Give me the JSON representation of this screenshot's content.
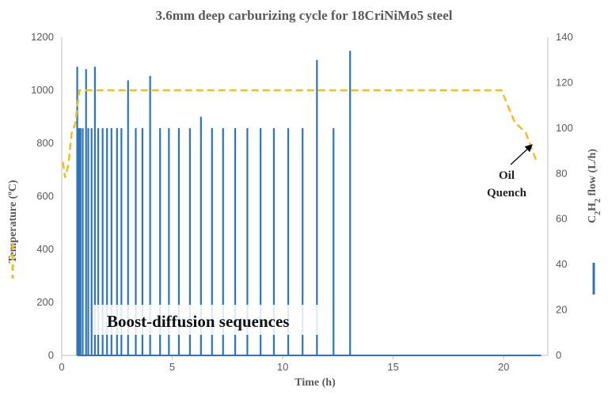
{
  "chart_data": {
    "type": "line",
    "title": "3.6mm deep carburizing cycle for 18CriNiMo5 steel",
    "xlabel": "Time (h)",
    "ylabel_left": "Temperature (ºC)",
    "ylabel_right_main": "C",
    "ylabel_right_sub1": "2",
    "ylabel_right_mid": "H",
    "ylabel_right_sub2": "2",
    "ylabel_right_end": " flow (L/h)",
    "xlim": [
      0,
      22
    ],
    "ylim_left": [
      0,
      1200
    ],
    "ylim_right": [
      0,
      140
    ],
    "x_ticks": [
      "0",
      "5",
      "10",
      "15",
      "20"
    ],
    "x_tick_values": [
      0,
      5,
      10,
      15,
      20
    ],
    "y_left_ticks": [
      "0",
      "200",
      "400",
      "600",
      "800",
      "1000",
      "1200"
    ],
    "y_left_tick_values": [
      0,
      200,
      400,
      600,
      800,
      1000,
      1200
    ],
    "y_right_ticks": [
      "0",
      "20",
      "40",
      "60",
      "80",
      "100",
      "120",
      "140"
    ],
    "y_right_tick_values": [
      0,
      20,
      40,
      60,
      80,
      100,
      120,
      140
    ],
    "colors": {
      "temperature": "#f0c020",
      "flow": "#2e75b6",
      "axis": "#bfbfbf"
    },
    "series": [
      {
        "axis": "left",
        "style": "dashed",
        "points": [
          [
            0.05,
            730
          ],
          [
            0.15,
            670
          ],
          [
            0.3,
            720
          ],
          [
            0.45,
            840
          ],
          [
            0.6,
            870
          ],
          [
            0.8,
            1000
          ],
          [
            19.9,
            1000
          ],
          [
            20.5,
            880
          ],
          [
            21.0,
            840
          ],
          [
            21.5,
            730
          ]
        ]
      },
      {
        "axis": "right",
        "style": "spikes",
        "spikes": [
          [
            0.7,
            127
          ],
          [
            0.75,
            100
          ],
          [
            0.8,
            100
          ],
          [
            0.85,
            100
          ],
          [
            0.95,
            100
          ],
          [
            1.1,
            126
          ],
          [
            1.2,
            100
          ],
          [
            1.35,
            100
          ],
          [
            1.5,
            127
          ],
          [
            1.65,
            100
          ],
          [
            1.85,
            100
          ],
          [
            2.05,
            100
          ],
          [
            2.25,
            100
          ],
          [
            2.5,
            100
          ],
          [
            2.7,
            100
          ],
          [
            3.0,
            121
          ],
          [
            3.35,
            100
          ],
          [
            3.65,
            100
          ],
          [
            4.0,
            123
          ],
          [
            4.45,
            100
          ],
          [
            4.85,
            100
          ],
          [
            5.3,
            100
          ],
          [
            5.8,
            100
          ],
          [
            6.3,
            105
          ],
          [
            6.8,
            100
          ],
          [
            7.3,
            100
          ],
          [
            7.85,
            100
          ],
          [
            8.4,
            100
          ],
          [
            9.0,
            100
          ],
          [
            9.6,
            100
          ],
          [
            10.25,
            100
          ],
          [
            10.9,
            100
          ],
          [
            11.55,
            130
          ],
          [
            12.3,
            100
          ],
          [
            13.05,
            134
          ]
        ],
        "baseline_end": 21.7
      }
    ],
    "annotations": [
      {
        "text": "Boost-diffusion sequences",
        "x": 6.5,
        "y": 30,
        "axis": "right",
        "style": "large"
      },
      {
        "text_line1": "Oil",
        "text_line2": "Quench",
        "x": 21.0,
        "y": 780,
        "axis": "left",
        "arrow_to": [
          21.2,
          780
        ]
      }
    ],
    "legend": {
      "temperature_position": "left",
      "flow_position": "right"
    },
    "grid": false
  }
}
